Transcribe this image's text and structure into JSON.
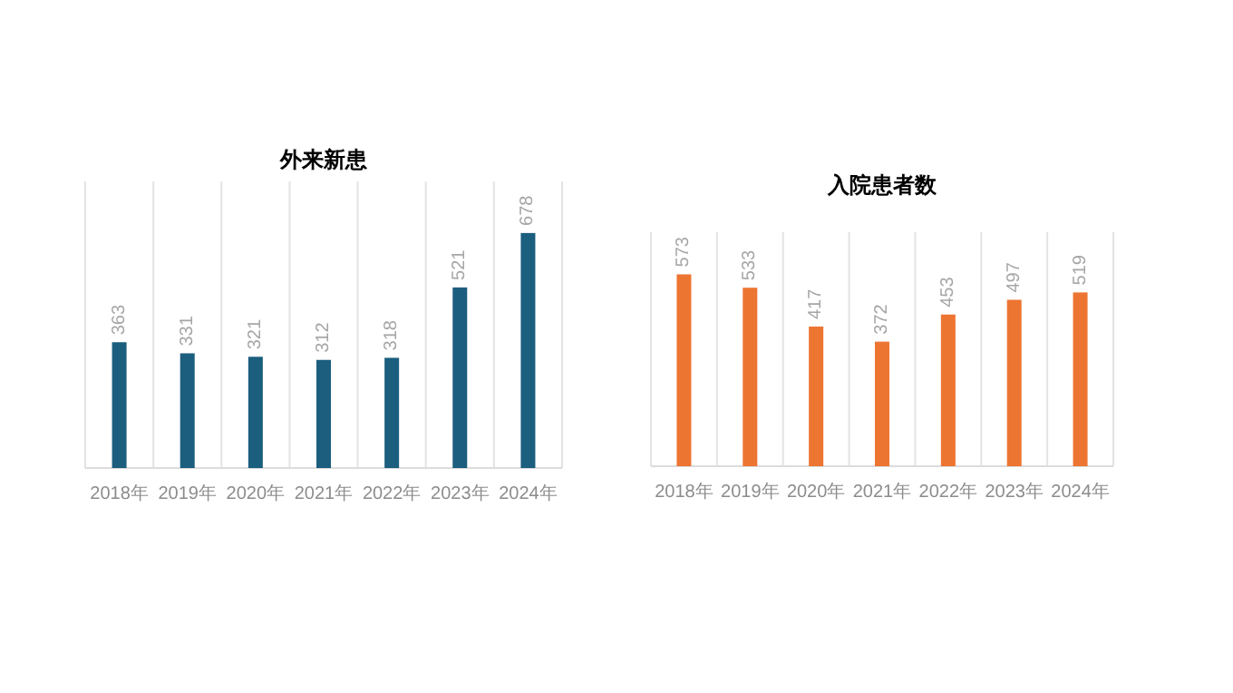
{
  "chart_data": [
    {
      "type": "bar",
      "title": "外来新患",
      "categories": [
        "2018年",
        "2019年",
        "2020年",
        "2021年",
        "2022年",
        "2023年",
        "2024年"
      ],
      "values": [
        363,
        331,
        321,
        312,
        318,
        521,
        678
      ],
      "color": "#1b5e7e",
      "data_labels": true,
      "grid": "x"
    },
    {
      "type": "bar",
      "title": "入院患者数",
      "categories": [
        "2018年",
        "2019年",
        "2020年",
        "2021年",
        "2022年",
        "2023年",
        "2024年"
      ],
      "values": [
        573,
        533,
        417,
        372,
        453,
        497,
        519
      ],
      "color": "#ed7532",
      "data_labels": true,
      "grid": "x"
    }
  ]
}
